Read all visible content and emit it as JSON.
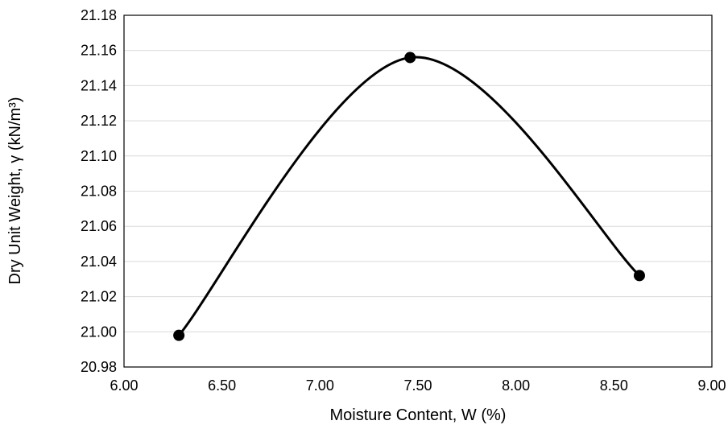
{
  "chart_data": {
    "type": "scatter",
    "xlabel": "Moisture Content, W (%)",
    "ylabel": "Dry Unit Weight, γ (kN/m³)",
    "xlim": [
      6.0,
      9.0
    ],
    "ylim": [
      20.98,
      21.18
    ],
    "x_ticks": [
      "6.00",
      "6.50",
      "7.00",
      "7.50",
      "8.00",
      "8.50",
      "9.00"
    ],
    "y_ticks": [
      "20.98",
      "21.00",
      "21.02",
      "21.04",
      "21.06",
      "21.08",
      "21.10",
      "21.12",
      "21.14",
      "21.16",
      "21.18"
    ],
    "grid": "horizontal",
    "smoothed_line": true,
    "series": [
      {
        "x": [
          6.28,
          7.46,
          8.63
        ],
        "y": [
          20.998,
          21.156,
          21.032
        ]
      }
    ],
    "colors": {
      "line": "#000000",
      "marker": "#000000",
      "grid": "#d9d9d9"
    }
  }
}
